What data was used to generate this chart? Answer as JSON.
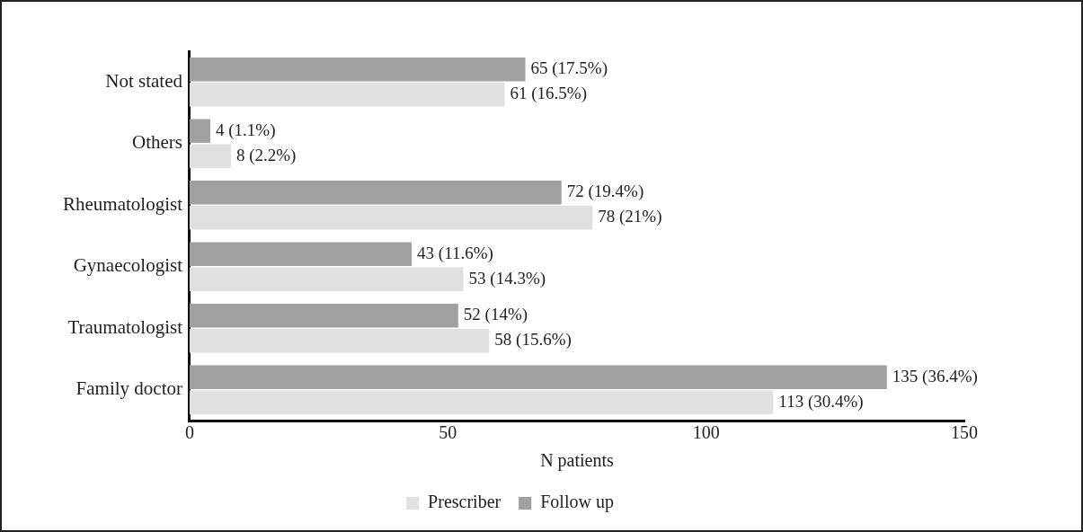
{
  "chart_data": {
    "type": "bar",
    "orientation": "horizontal",
    "xlabel": "N patients",
    "categories": [
      "Not stated",
      "Others",
      "Rheumatologist",
      "Gynaecologist",
      "Traumatologist",
      "Family doctor"
    ],
    "series": [
      {
        "name": "Follow up",
        "color": "#a0a0a2",
        "values": [
          65,
          4,
          72,
          43,
          52,
          135
        ],
        "value_labels": [
          "65 (17.5%)",
          "4 (1.1%)",
          "72 (19.4%)",
          "43 (11.6%)",
          "52 (14%)",
          "135 (36.4%)"
        ]
      },
      {
        "name": "Prescriber",
        "color": "#e0e0e0",
        "values": [
          61,
          8,
          78,
          53,
          58,
          113
        ],
        "value_labels": [
          "61 (16.5%)",
          "8 (2.2%)",
          "78 (21%)",
          "53 (14.3%)",
          "58 (15.6%)",
          "113 (30.4%)"
        ]
      }
    ],
    "xlim": [
      0,
      150
    ],
    "xticks": [
      0,
      50,
      100,
      150
    ],
    "grid": false,
    "legend": "bottom"
  }
}
